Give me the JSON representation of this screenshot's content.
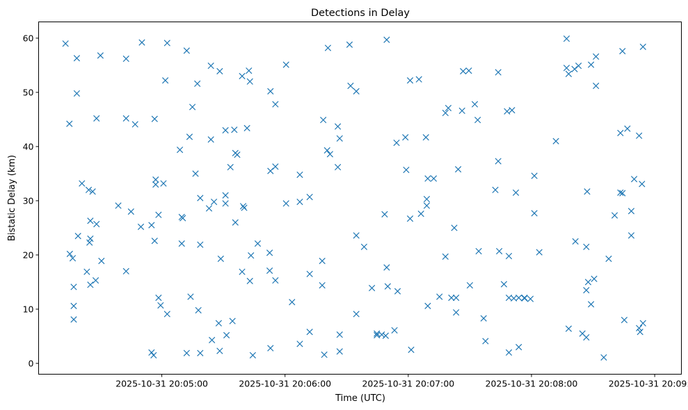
{
  "chart_data": {
    "type": "scatter",
    "title": "Detections in Delay",
    "xlabel": "Time (UTC)",
    "ylabel": "Bistatic Delay (km)",
    "marker": "x",
    "color": "#1f77b4",
    "x_unit": "seconds after 2025-10-31 20:04:00",
    "xlim": [
      0,
      313
    ],
    "ylim": [
      -2,
      63
    ],
    "x_ticks": [
      {
        "value": 60,
        "label": "2025-10-31 20:05:00"
      },
      {
        "value": 120,
        "label": "2025-10-31 20:06:00"
      },
      {
        "value": 180,
        "label": "2025-10-31 20:07:00"
      },
      {
        "value": 240,
        "label": "2025-10-31 20:08:00"
      },
      {
        "value": 300,
        "label": "2025-10-31 20:09:00"
      }
    ],
    "y_ticks": [
      {
        "value": 0,
        "label": "0"
      },
      {
        "value": 10,
        "label": "10"
      },
      {
        "value": 20,
        "label": "20"
      },
      {
        "value": 30,
        "label": "30"
      },
      {
        "value": 40,
        "label": "40"
      },
      {
        "value": 50,
        "label": "50"
      },
      {
        "value": 60,
        "label": "60"
      }
    ],
    "grid": false,
    "points": [
      [
        13.1,
        59
      ],
      [
        15.0,
        44.2
      ],
      [
        15.2,
        20.2
      ],
      [
        16.6,
        19.4
      ],
      [
        17.1,
        14.1
      ],
      [
        17.1,
        10.6
      ],
      [
        17.1,
        8.1
      ],
      [
        18.6,
        56.3
      ],
      [
        18.6,
        49.8
      ],
      [
        19.2,
        23.5
      ],
      [
        21.1,
        33.2
      ],
      [
        23.5,
        16.9
      ],
      [
        24.4,
        32.0
      ],
      [
        24.8,
        22.3
      ],
      [
        25.2,
        23.0
      ],
      [
        25.2,
        14.5
      ],
      [
        25.2,
        26.3
      ],
      [
        26.3,
        31.7
      ],
      [
        27.8,
        15.3
      ],
      [
        28.2,
        25.7
      ],
      [
        28.2,
        45.2
      ],
      [
        30.1,
        56.8
      ],
      [
        30.6,
        18.9
      ],
      [
        38.8,
        29.1
      ],
      [
        42.6,
        17.0
      ],
      [
        42.6,
        45.2
      ],
      [
        42.6,
        56.2
      ],
      [
        45.0,
        28.0
      ],
      [
        47.0,
        44.1
      ],
      [
        49.8,
        25.2
      ],
      [
        50.3,
        59.2
      ],
      [
        55.0,
        25.5
      ],
      [
        55.0,
        2.0
      ],
      [
        56.0,
        1.5
      ],
      [
        56.5,
        45.1
      ],
      [
        56.5,
        22.6
      ],
      [
        57.0,
        33.9
      ],
      [
        57.0,
        33.0
      ],
      [
        58.4,
        27.4
      ],
      [
        58.4,
        12.1
      ],
      [
        59.4,
        10.7
      ],
      [
        60.8,
        33.2
      ],
      [
        61.7,
        52.2
      ],
      [
        62.6,
        9.1
      ],
      [
        62.6,
        59.1
      ],
      [
        68.8,
        39.4
      ],
      [
        69.7,
        27.0
      ],
      [
        69.7,
        22.1
      ],
      [
        70.2,
        26.8
      ],
      [
        72.1,
        57.7
      ],
      [
        72.1,
        1.9
      ],
      [
        73.5,
        41.8
      ],
      [
        74.0,
        12.3
      ],
      [
        74.9,
        47.3
      ],
      [
        76.4,
        35.0
      ],
      [
        77.3,
        51.6
      ],
      [
        77.8,
        9.8
      ],
      [
        78.7,
        30.5
      ],
      [
        78.7,
        21.9
      ],
      [
        78.7,
        1.9
      ],
      [
        83.0,
        28.6
      ],
      [
        83.9,
        41.3
      ],
      [
        83.9,
        54.9
      ],
      [
        84.4,
        4.3
      ],
      [
        85.4,
        29.8
      ],
      [
        87.7,
        7.4
      ],
      [
        88.2,
        53.9
      ],
      [
        88.2,
        2.3
      ],
      [
        88.7,
        19.3
      ],
      [
        91.0,
        43.0
      ],
      [
        91.0,
        31.0
      ],
      [
        91.0,
        29.5
      ],
      [
        91.5,
        5.2
      ],
      [
        93.4,
        36.2
      ],
      [
        94.4,
        7.8
      ],
      [
        95.3,
        43.1
      ],
      [
        95.8,
        26.0
      ],
      [
        95.8,
        38.8
      ],
      [
        96.7,
        38.5
      ],
      [
        99.1,
        53.0
      ],
      [
        99.1,
        16.9
      ],
      [
        99.6,
        29.0
      ],
      [
        100.1,
        28.7
      ],
      [
        101.5,
        43.4
      ],
      [
        102.4,
        54.0
      ],
      [
        102.9,
        52.0
      ],
      [
        102.9,
        15.2
      ],
      [
        103.4,
        19.9
      ],
      [
        104.3,
        1.5
      ],
      [
        106.7,
        22.1
      ],
      [
        112.5,
        20.4
      ],
      [
        112.5,
        17.1
      ],
      [
        112.9,
        35.5
      ],
      [
        112.9,
        50.2
      ],
      [
        112.9,
        2.8
      ],
      [
        115.3,
        36.3
      ],
      [
        115.3,
        47.8
      ],
      [
        115.3,
        15.3
      ],
      [
        120.5,
        55.1
      ],
      [
        120.5,
        29.5
      ],
      [
        123.4,
        11.3
      ],
      [
        127.2,
        34.8
      ],
      [
        127.2,
        29.8
      ],
      [
        127.2,
        3.6
      ],
      [
        132.0,
        30.7
      ],
      [
        132.0,
        16.5
      ],
      [
        132.0,
        5.8
      ],
      [
        138.1,
        18.9
      ],
      [
        138.1,
        14.4
      ],
      [
        138.6,
        44.9
      ],
      [
        139.1,
        1.6
      ],
      [
        140.5,
        39.3
      ],
      [
        140.9,
        58.2
      ],
      [
        141.9,
        38.6
      ],
      [
        145.7,
        43.7
      ],
      [
        145.7,
        36.2
      ],
      [
        146.6,
        41.5
      ],
      [
        146.6,
        5.3
      ],
      [
        146.6,
        2.2
      ],
      [
        151.4,
        58.8
      ],
      [
        151.9,
        51.2
      ],
      [
        154.7,
        50.2
      ],
      [
        154.7,
        23.6
      ],
      [
        154.7,
        9.1
      ],
      [
        158.5,
        21.5
      ],
      [
        162.3,
        13.9
      ],
      [
        164.7,
        5.5
      ],
      [
        164.7,
        5.2
      ],
      [
        167.1,
        5.3
      ],
      [
        168.5,
        27.5
      ],
      [
        169.0,
        5.1
      ],
      [
        169.5,
        59.7
      ],
      [
        169.5,
        17.7
      ],
      [
        170.0,
        14.2
      ],
      [
        173.3,
        6.1
      ],
      [
        174.3,
        40.7
      ],
      [
        174.8,
        13.3
      ],
      [
        178.6,
        41.7
      ],
      [
        179.0,
        35.7
      ],
      [
        180.9,
        52.2
      ],
      [
        180.9,
        26.7
      ],
      [
        181.4,
        2.5
      ],
      [
        185.2,
        52.4
      ],
      [
        186.2,
        27.6
      ],
      [
        188.6,
        41.7
      ],
      [
        189.0,
        30.3
      ],
      [
        189.0,
        29.1
      ],
      [
        189.5,
        34.1
      ],
      [
        189.5,
        10.6
      ],
      [
        192.4,
        34.1
      ],
      [
        195.2,
        12.3
      ],
      [
        198.1,
        19.7
      ],
      [
        198.1,
        46.2
      ],
      [
        199.5,
        47.1
      ],
      [
        201.0,
        12.1
      ],
      [
        202.4,
        25.0
      ],
      [
        203.3,
        12.1
      ],
      [
        203.3,
        9.4
      ],
      [
        204.3,
        35.8
      ],
      [
        206.2,
        46.6
      ],
      [
        206.7,
        53.9
      ],
      [
        209.5,
        54.0
      ],
      [
        210.0,
        14.4
      ],
      [
        212.4,
        47.8
      ],
      [
        213.8,
        44.9
      ],
      [
        214.3,
        20.7
      ],
      [
        216.7,
        8.3
      ],
      [
        217.6,
        4.1
      ],
      [
        222.4,
        32.0
      ],
      [
        223.8,
        37.3
      ],
      [
        223.8,
        53.7
      ],
      [
        224.3,
        20.7
      ],
      [
        226.6,
        14.6
      ],
      [
        228.1,
        46.5
      ],
      [
        229.0,
        12.1
      ],
      [
        229.0,
        19.8
      ],
      [
        229.0,
        2.0
      ],
      [
        230.5,
        46.7
      ],
      [
        231.4,
        12.0
      ],
      [
        232.4,
        31.5
      ],
      [
        233.8,
        12.1
      ],
      [
        233.8,
        3.0
      ],
      [
        236.6,
        12.1
      ],
      [
        236.6,
        12.0
      ],
      [
        239.5,
        11.9
      ],
      [
        241.4,
        27.7
      ],
      [
        241.4,
        34.6
      ],
      [
        243.8,
        20.5
      ],
      [
        251.9,
        41.0
      ],
      [
        257.1,
        59.9
      ],
      [
        257.1,
        54.5
      ],
      [
        258.1,
        53.4
      ],
      [
        258.1,
        6.4
      ],
      [
        261.0,
        54.3
      ],
      [
        261.4,
        22.5
      ],
      [
        262.9,
        54.9
      ],
      [
        264.8,
        5.5
      ],
      [
        266.7,
        21.5
      ],
      [
        266.7,
        13.5
      ],
      [
        266.7,
        4.8
      ],
      [
        267.1,
        31.7
      ],
      [
        267.6,
        15.0
      ],
      [
        269.0,
        55.1
      ],
      [
        269.0,
        10.9
      ],
      [
        270.5,
        15.6
      ],
      [
        271.4,
        56.6
      ],
      [
        271.4,
        51.2
      ],
      [
        275.2,
        1.1
      ],
      [
        277.6,
        19.3
      ],
      [
        280.5,
        27.3
      ],
      [
        283.3,
        42.5
      ],
      [
        283.3,
        31.5
      ],
      [
        284.3,
        57.6
      ],
      [
        284.3,
        31.4
      ],
      [
        285.2,
        8.0
      ],
      [
        286.7,
        43.3
      ],
      [
        288.6,
        28.1
      ],
      [
        288.6,
        23.6
      ],
      [
        290.0,
        34.0
      ],
      [
        292.4,
        42.0
      ],
      [
        292.4,
        6.5
      ],
      [
        292.9,
        5.8
      ],
      [
        293.8,
        33.1
      ],
      [
        294.3,
        58.4
      ],
      [
        294.3,
        7.4
      ]
    ]
  }
}
